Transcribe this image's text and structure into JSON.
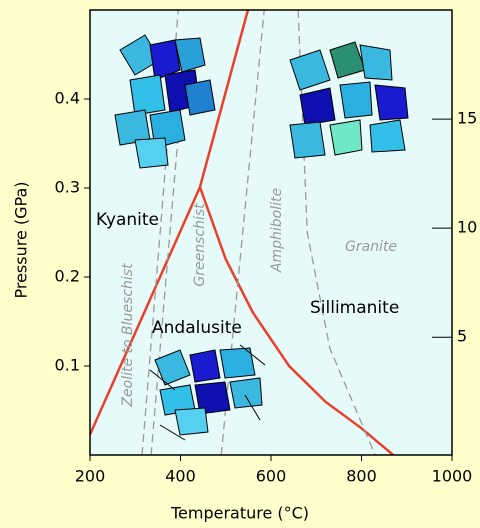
{
  "chart_data": {
    "type": "line",
    "x_label": "Temperature (°C)",
    "y_label": "Pressure (GPa)",
    "xlim": [
      200,
      1000
    ],
    "xticks": [
      200,
      400,
      600,
      800,
      1000
    ],
    "ylim": [
      0,
      0.5
    ],
    "yticks": [
      0.1,
      0.2,
      0.3,
      0.4
    ],
    "y2lim": [
      -0.4,
      20
    ],
    "y2ticks": [
      5,
      10,
      15
    ],
    "lines": [
      {
        "color": "#e8402a",
        "dash": false,
        "x": [
          200,
          443
        ],
        "values": [
          0.023,
          0.301
        ]
      },
      {
        "color": "#e8402a",
        "dash": false,
        "x": [
          443,
          549
        ],
        "values": [
          0.301,
          0.5
        ]
      },
      {
        "color": "#e8402a",
        "dash": false,
        "x": [
          443,
          500,
          560,
          640,
          720,
          800,
          870
        ],
        "values": [
          0.301,
          0.22,
          0.16,
          0.1,
          0.06,
          0.03,
          0
        ]
      },
      {
        "color": "#999999",
        "dash": true,
        "x": [
          315,
          395
        ],
        "values": [
          0,
          0.5
        ]
      },
      {
        "color": "#999999",
        "dash": true,
        "x": [
          335,
          410
        ],
        "values": [
          0,
          0.45
        ]
      },
      {
        "color": "#999999",
        "dash": true,
        "x": [
          490,
          585
        ],
        "values": [
          0,
          0.5
        ]
      },
      {
        "color": "#999999",
        "dash": true,
        "x": [
          660,
          680,
          730,
          830
        ],
        "values": [
          0.5,
          0.25,
          0.12,
          0
        ]
      }
    ],
    "phases": [
      "Kyanite",
      "Andalusite",
      "Sillimanite"
    ],
    "facies": [
      "Zeolite to Blueschist",
      "Greenschist",
      "Amphibolite",
      "Granite"
    ]
  }
}
